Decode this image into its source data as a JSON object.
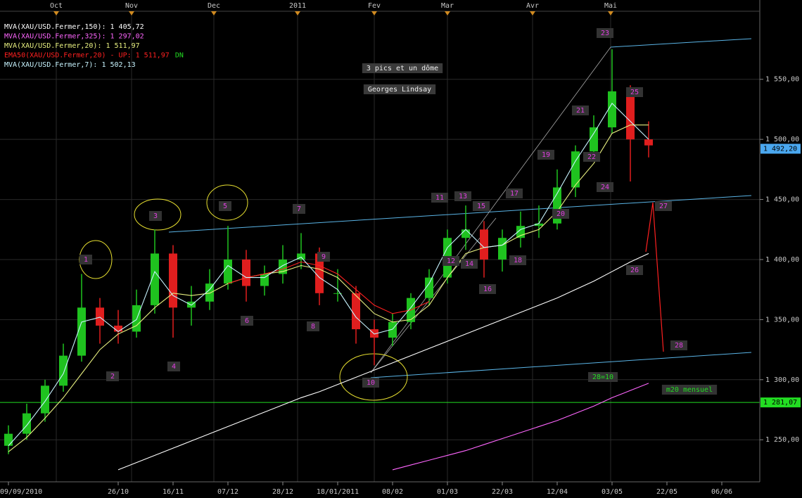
{
  "chart_data": {
    "type": "candlestick",
    "categories": [
      "09/09/2010",
      null,
      null,
      null,
      null,
      null,
      "26/10",
      null,
      null,
      "16/11",
      null,
      null,
      "07/12",
      null,
      null,
      "28/12",
      null,
      null,
      "18/01/2011",
      null,
      null,
      "08/02",
      null,
      null,
      "01/03",
      null,
      null,
      "22/03",
      null,
      null,
      "12/04",
      null,
      null,
      "03/05",
      null,
      null,
      "22/05",
      null,
      null,
      "06/06",
      null
    ],
    "open": [
      1245,
      1255,
      1272,
      1295,
      1320,
      1360,
      1345,
      1340,
      1362,
      1405,
      1360,
      1365,
      1380,
      1400,
      1378,
      1388,
      1400,
      1405,
      1372,
      1372,
      1342,
      1335,
      1348,
      1368,
      1385,
      1418,
      1425,
      1400,
      1418,
      1428,
      1430,
      1460,
      1490,
      1510,
      1540,
      1500,
      null,
      null,
      null,
      null,
      null
    ],
    "high": [
      1262,
      1280,
      1300,
      1330,
      1388,
      1368,
      1358,
      1375,
      1425,
      1412,
      1378,
      1392,
      1428,
      1408,
      1395,
      1412,
      1422,
      1410,
      1392,
      1378,
      1350,
      1355,
      1372,
      1392,
      1425,
      1445,
      1432,
      1425,
      1440,
      1445,
      1475,
      1495,
      1520,
      1575,
      1545,
      1515,
      null,
      null,
      null,
      null,
      null
    ],
    "low": [
      1238,
      1250,
      1265,
      1290,
      1315,
      1330,
      1330,
      1335,
      1355,
      1335,
      1345,
      1358,
      1375,
      1365,
      1370,
      1380,
      1392,
      1362,
      1365,
      1330,
      1312,
      1328,
      1342,
      1362,
      1380,
      1408,
      1385,
      1390,
      1410,
      1418,
      1425,
      1452,
      1482,
      1505,
      1465,
      1485,
      null,
      null,
      null,
      null,
      null
    ],
    "close": [
      1255,
      1272,
      1295,
      1320,
      1360,
      1345,
      1340,
      1362,
      1405,
      1360,
      1365,
      1380,
      1400,
      1378,
      1388,
      1400,
      1405,
      1372,
      1372,
      1342,
      1335,
      1348,
      1368,
      1385,
      1418,
      1425,
      1400,
      1418,
      1428,
      1430,
      1460,
      1490,
      1510,
      1540,
      1500,
      1495,
      null,
      null,
      null,
      null,
      null
    ],
    "up_color": "#1fc21f",
    "down_color": "#e01e1e",
    "series": [
      {
        "name": "MVA(XAU/USD.Fermer,150): 1 405,72",
        "color": "#ffffff",
        "values": [
          null,
          null,
          null,
          null,
          null,
          null,
          1225,
          1231,
          1237,
          1243,
          1249,
          1255,
          1261,
          1267,
          1273,
          1279,
          1285,
          1290,
          1296,
          1302,
          1308,
          1314,
          1320,
          1326,
          1332,
          1338,
          1344,
          1350,
          1356,
          1362,
          1368,
          1375,
          1382,
          1390,
          1398,
          1405,
          null,
          null,
          null,
          null,
          null
        ]
      },
      {
        "name": "MVA(XAU/USD.Fermer,325): 1 297,02",
        "color": "#ff66ff",
        "values": [
          null,
          null,
          null,
          null,
          null,
          null,
          null,
          null,
          null,
          null,
          null,
          null,
          null,
          null,
          null,
          null,
          null,
          null,
          null,
          null,
          null,
          1225,
          1229,
          1233,
          1237,
          1241,
          1246,
          1251,
          1256,
          1261,
          1266,
          1272,
          1278,
          1285,
          1291,
          1297,
          null,
          null,
          null,
          null,
          null
        ]
      },
      {
        "name": "MVA(XAU/USD.Fermer,20): 1 511,97",
        "color": "#e8f080",
        "values": [
          1240,
          1252,
          1268,
          1285,
          1305,
          1325,
          1338,
          1345,
          1360,
          1372,
          1370,
          1372,
          1380,
          1385,
          1388,
          1390,
          1395,
          1392,
          1385,
          1370,
          1355,
          1348,
          1350,
          1362,
          1385,
          1405,
          1410,
          1412,
          1420,
          1425,
          1440,
          1462,
          1480,
          1505,
          1512,
          1512,
          null,
          null,
          null,
          null,
          null
        ]
      },
      {
        "name": "EMA50(XAU/USD.Fermer,20) - UP: 1 511,97",
        "color": "#ff2020",
        "values": [
          null,
          null,
          null,
          null,
          null,
          null,
          null,
          null,
          null,
          null,
          null,
          null,
          1380,
          1385,
          1388,
          1392,
          1398,
          1395,
          1388,
          1375,
          1362,
          1355,
          1358,
          1365,
          null,
          null,
          null,
          null,
          null,
          null,
          null,
          null,
          null,
          null,
          null,
          null,
          null,
          null,
          null,
          null,
          null
        ]
      },
      {
        "name": "MVA(XAU/USD.Fermer,7): 1 502,13",
        "color": "#c8f4ff",
        "values": [
          1245,
          1262,
          1282,
          1305,
          1348,
          1352,
          1340,
          1350,
          1390,
          1370,
          1362,
          1375,
          1395,
          1385,
          1385,
          1395,
          1402,
          1385,
          1375,
          1352,
          1338,
          1342,
          1360,
          1380,
          1410,
          1425,
          1410,
          1412,
          1425,
          1430,
          1455,
          1482,
          1505,
          1530,
          1515,
          1500,
          null,
          null,
          null,
          null,
          null
        ]
      }
    ],
    "legend_suffix": "DN",
    "ylim": [
      1215,
      1616
    ],
    "yticks": [
      {
        "value": 1250,
        "label": "1 250,00"
      },
      {
        "value": 1300,
        "label": "1 300,00"
      },
      {
        "value": 1350,
        "label": "1 350,00"
      },
      {
        "value": 1400,
        "label": "1 400,00"
      },
      {
        "value": 1450,
        "label": "1 450,00"
      },
      {
        "value": 1500,
        "label": "1 500,00"
      },
      {
        "value": 1550,
        "label": "1 550,00"
      }
    ],
    "top_axis": [
      "Oct",
      "Nov",
      "Dec",
      "2011",
      "Fev",
      "Mar",
      "Avr",
      "Mai"
    ],
    "price_markers": [
      {
        "value": 1492.2,
        "label": "1 492,20",
        "color": "#4aa8f0"
      },
      {
        "value": 1281.07,
        "label": "1 281,07",
        "color": "#22dd22"
      }
    ],
    "annotations": [
      "1",
      "2",
      "3",
      "4",
      "5",
      "6",
      "7",
      "8",
      "9",
      "10",
      "11",
      "12",
      "13",
      "14",
      "15",
      "16",
      "17",
      "18",
      "19",
      "20",
      "21",
      "22",
      "23",
      "24",
      "25",
      "26",
      "27",
      "28",
      "28=10",
      "m20 mensuel",
      "3 pics et un dôme",
      "Georges Lindsay"
    ],
    "grid": true
  }
}
